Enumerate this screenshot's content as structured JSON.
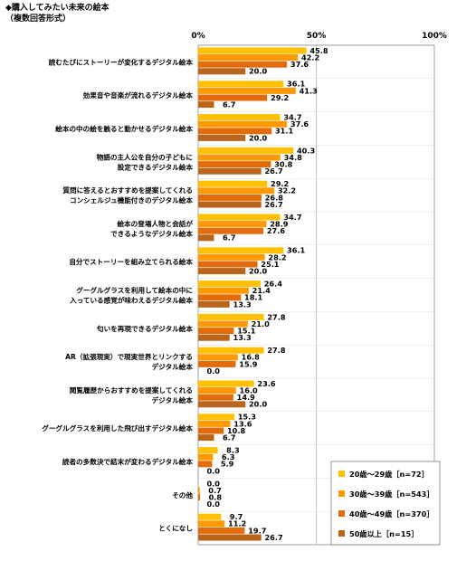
{
  "title": "◆購入してみたい未来の絵本",
  "subtitle": "（複数回答形式）",
  "chart_data": {
    "type": "bar",
    "orientation": "horizontal",
    "categories": [
      [
        "読むたびにストーリーが変化するデジタル絵本"
      ],
      [
        "効果音や音楽が流れるデジタル絵本"
      ],
      [
        "絵本の中の絵を触ると動かせるデジタル絵本"
      ],
      [
        "物語の主人公を自分の子どもに",
        "設定できるデジタル絵本"
      ],
      [
        "質問に答えるとおすすめを提案してくれる",
        "コンシェルジュ機能付きのデジタル絵本"
      ],
      [
        "絵本の登場人物と会話が",
        "できるようなデジタル絵本"
      ],
      [
        "自分でストーリーを組み立てられる絵本"
      ],
      [
        "グーグルグラスを利用して絵本の中に",
        "入っている感覚が味わえるデジタル絵本"
      ],
      [
        "匂いを再現できるデジタル絵本"
      ],
      [
        "AR（拡張現実）で現実世界とリンクする",
        "デジタル絵本"
      ],
      [
        "閲覧履歴からおすすめを提案してくれる",
        "デジタル絵本"
      ],
      [
        "グーグルグラスを利用した飛び出すデジタル絵本"
      ],
      [
        "読者の多数決で結末が変わるデジタル絵本"
      ],
      [
        "その他"
      ],
      [
        "とくになし"
      ]
    ],
    "series": [
      {
        "name": "20歳～29歳［n=72］",
        "color": "#FFC000",
        "values": [
          45.8,
          36.1,
          34.7,
          40.3,
          29.2,
          34.7,
          36.1,
          26.4,
          27.8,
          27.8,
          23.6,
          15.3,
          8.3,
          0.0,
          9.7
        ]
      },
      {
        "name": "30歳～39歳［n=543］",
        "color": "#FF9900",
        "values": [
          42.2,
          41.3,
          37.6,
          34.8,
          32.2,
          28.9,
          28.2,
          21.4,
          21.0,
          16.8,
          16.0,
          13.6,
          6.3,
          0.7,
          11.2
        ]
      },
      {
        "name": "40歳～49歳［n=370］",
        "color": "#E26B0A",
        "values": [
          37.6,
          29.2,
          31.1,
          30.8,
          26.8,
          27.6,
          25.1,
          18.1,
          15.1,
          15.9,
          14.9,
          10.8,
          5.9,
          0.8,
          19.7
        ]
      },
      {
        "name": "50歳以上［n=15］",
        "color": "#B8651B",
        "values": [
          20.0,
          6.7,
          20.0,
          26.7,
          26.7,
          6.7,
          20.0,
          13.3,
          13.3,
          0.0,
          20.0,
          6.7,
          0.0,
          0.0,
          26.7
        ]
      }
    ],
    "xlim": [
      0,
      100
    ],
    "xticks": [
      "0%",
      "50%",
      "100%"
    ],
    "grid": true,
    "legend_position": "bottom-right"
  }
}
